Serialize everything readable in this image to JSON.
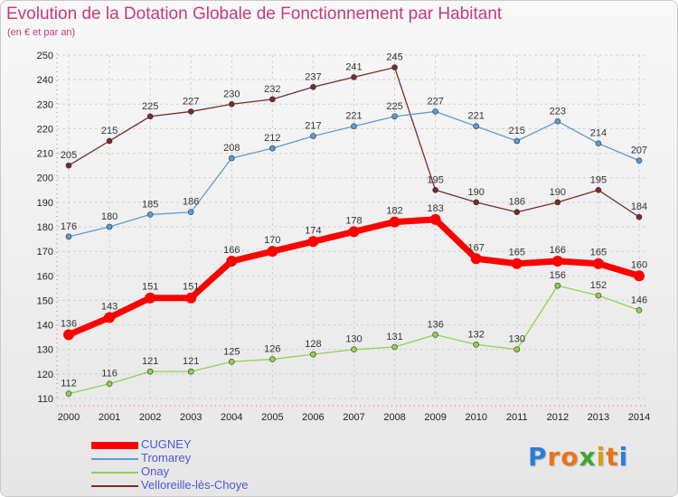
{
  "title": "Evolution de la Dotation Globale de Fonctionnement par Habitant",
  "subtitle": "(en € et par an)",
  "logo": {
    "letters": [
      "P",
      "r",
      "o",
      "x",
      "i",
      "t",
      "i"
    ],
    "colors": [
      "#2a7fd4",
      "#e8741a",
      "#e8741a",
      "#3aa635",
      "#d4a017",
      "#e8741a",
      "#2a7fd4"
    ]
  },
  "chart_data": {
    "type": "line",
    "x": [
      "2000",
      "2001",
      "2002",
      "2003",
      "2004",
      "2005",
      "2006",
      "2007",
      "2008",
      "2009",
      "2010",
      "2011",
      "2012",
      "2013",
      "2014"
    ],
    "ylim": [
      110,
      250
    ],
    "yticks": [
      110,
      120,
      130,
      140,
      150,
      160,
      170,
      180,
      190,
      200,
      210,
      220,
      230,
      240,
      250
    ],
    "grid": true,
    "legend": "bottom-left",
    "series": [
      {
        "name": "Velloreille-lès-Choye",
        "color": "#7b2a2a",
        "width": 1.3,
        "values": [
          205,
          215,
          225,
          227,
          230,
          232,
          237,
          241,
          245,
          195,
          190,
          186,
          190,
          195,
          184
        ]
      },
      {
        "name": "Tromarey",
        "color": "#5b9bd5",
        "width": 1.3,
        "values": [
          176,
          180,
          185,
          186,
          208,
          212,
          217,
          221,
          225,
          227,
          221,
          215,
          223,
          214,
          207
        ]
      },
      {
        "name": "Onay",
        "color": "#92d050",
        "width": 1.3,
        "values": [
          112,
          116,
          121,
          121,
          125,
          126,
          128,
          130,
          131,
          136,
          132,
          130,
          156,
          152,
          146
        ]
      },
      {
        "name": "CUGNEY",
        "color": "#ff0000",
        "width": 7,
        "values": [
          136,
          143,
          151,
          151,
          166,
          170,
          174,
          178,
          182,
          183,
          167,
          165,
          166,
          165,
          160
        ]
      }
    ],
    "legend_order": [
      "CUGNEY",
      "Tromarey",
      "Onay",
      "Velloreille-lès-Choye"
    ]
  }
}
